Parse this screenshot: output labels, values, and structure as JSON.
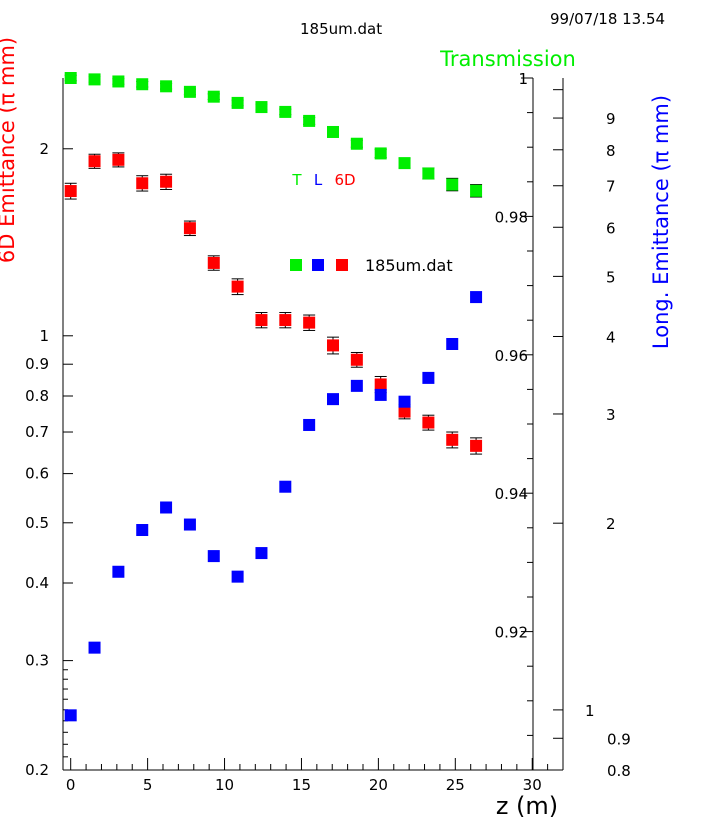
{
  "header": {
    "filename": "185um.dat",
    "datetime": "99/07/18   13.54"
  },
  "chart_data": {
    "type": "scatter",
    "title": "185um.dat",
    "xlabel": "z (m)",
    "xlim": [
      -0.5,
      32
    ],
    "x_ticks": [
      0,
      5,
      10,
      15,
      20,
      25,
      30
    ],
    "x": [
      0.0,
      1.55,
      3.1,
      4.65,
      6.2,
      7.75,
      9.3,
      10.85,
      12.4,
      13.95,
      15.5,
      17.05,
      18.6,
      20.15,
      21.7,
      23.25,
      24.8,
      26.35
    ],
    "left_axis": {
      "label": "6D Emittance (π mm)",
      "label_visible_fragment": "6D Emittance (π mm)",
      "scale": "log",
      "ylim": [
        0.2,
        2.6
      ],
      "ticks": [
        "0.2",
        "0.3",
        "0.4",
        "0.5",
        "0.6",
        "0.7",
        "0.8",
        "0.9",
        "1",
        "2"
      ],
      "color": "#ff0000"
    },
    "transmission_axis": {
      "label": "Transmission",
      "scale": "linear",
      "ylim": [
        0.9,
        1.0
      ],
      "ticks": [
        "0.92",
        "0.94",
        "0.96",
        "0.98",
        "1"
      ],
      "color": "#00ee00"
    },
    "right_axis": {
      "label": "Long. Emittance (π mm)",
      "scale": "log",
      "ylim": [
        0.8,
        11
      ],
      "ticks": [
        "0.8",
        "0.9",
        "1",
        "2",
        "3",
        "4",
        "5",
        "6",
        "7",
        "8",
        "9"
      ],
      "color": "#0000ff"
    },
    "legend": {
      "placement": "center",
      "labels": [
        "T",
        "L",
        "6D"
      ],
      "label_colors": [
        "#00ee00",
        "#0000ff",
        "#ff0000"
      ],
      "marker_caption": "185um.dat"
    },
    "series": [
      {
        "name": "6D",
        "axis": "left",
        "color": "#ff0000",
        "values": [
          1.71,
          1.91,
          1.92,
          1.76,
          1.77,
          1.49,
          1.31,
          1.2,
          1.06,
          1.06,
          1.05,
          0.965,
          0.915,
          0.835,
          0.755,
          0.725,
          0.68,
          0.665
        ],
        "errors": [
          0.05,
          0.05,
          0.05,
          0.05,
          0.05,
          0.04,
          0.035,
          0.035,
          0.03,
          0.03,
          0.03,
          0.03,
          0.025,
          0.025,
          0.02,
          0.02,
          0.02,
          0.02
        ]
      },
      {
        "name": "T",
        "axis": "transmission",
        "color": "#00ee00",
        "values": [
          1.0,
          0.9998,
          0.9995,
          0.9991,
          0.9988,
          0.998,
          0.9973,
          0.9964,
          0.9958,
          0.9951,
          0.9938,
          0.9922,
          0.9905,
          0.9891,
          0.9877,
          0.9862,
          0.9846,
          0.9837
        ],
        "errors": [
          0.0004,
          0.0004,
          0.0004,
          0.0004,
          0.0004,
          0.0004,
          0.0004,
          0.0004,
          0.0004,
          0.0004,
          0.0005,
          0.0005,
          0.0005,
          0.0006,
          0.0007,
          0.0008,
          0.0009,
          0.0009
        ]
      },
      {
        "name": "L",
        "axis": "right",
        "color": "#0000ff",
        "values": [
          0.98,
          1.26,
          1.67,
          1.95,
          2.12,
          1.99,
          1.77,
          1.64,
          1.79,
          2.29,
          2.88,
          3.17,
          3.33,
          3.22,
          3.14,
          3.43,
          3.89,
          4.63
        ]
      }
    ]
  }
}
